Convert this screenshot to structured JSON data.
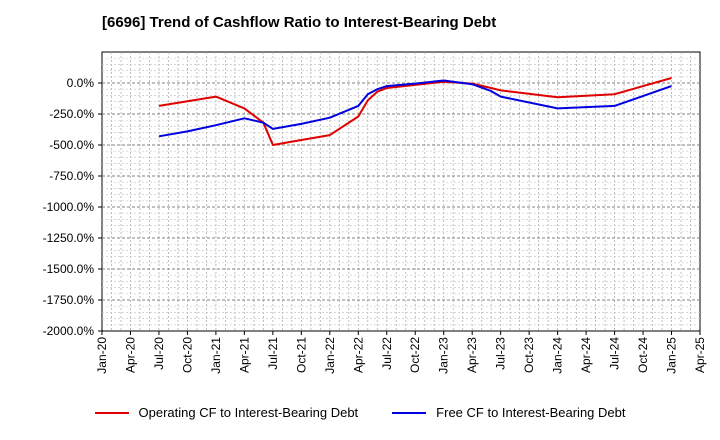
{
  "chart_data": {
    "type": "line",
    "title": "[6696]  Trend of Cashflow Ratio to Interest-Bearing Debt",
    "xlabel": "",
    "ylabel": "",
    "x_ticks": [
      "Jan-20",
      "Apr-20",
      "Jul-20",
      "Oct-20",
      "Jan-21",
      "Apr-21",
      "Jul-21",
      "Oct-21",
      "Jan-22",
      "Apr-22",
      "Jul-22",
      "Oct-22",
      "Jan-23",
      "Apr-23",
      "Jul-23",
      "Oct-23",
      "Jan-24",
      "Apr-24",
      "Jul-24",
      "Oct-24",
      "Jan-25",
      "Apr-25"
    ],
    "y_ticks": [
      "0.0%",
      "-250.0%",
      "-500.0%",
      "-750.0%",
      "-1000.0%",
      "-1250.0%",
      "-1500.0%",
      "-1750.0%",
      "-2000.0%"
    ],
    "ylim": [
      -2000,
      250
    ],
    "grid": true,
    "legend_position": "bottom",
    "series": [
      {
        "name": "Operating CF to Interest-Bearing Debt",
        "color": "#e00000",
        "x": [
          "Jul-20",
          "Jan-21",
          "Apr-21",
          "Jun-21",
          "Jul-21",
          "Oct-21",
          "Jan-22",
          "Apr-22",
          "May-22",
          "Jun-22",
          "Jul-22",
          "Oct-22",
          "Jan-23",
          "Apr-23",
          "Jun-23",
          "Jul-23",
          "Jan-24",
          "Jul-24",
          "Jan-25"
        ],
        "values": [
          -185,
          -110,
          -205,
          -320,
          -500,
          -460,
          -420,
          -270,
          -140,
          -70,
          -40,
          -15,
          10,
          -5,
          -40,
          -60,
          -115,
          -90,
          40
        ]
      },
      {
        "name": "Free CF to Interest-Bearing Debt",
        "color": "#0000e0",
        "x": [
          "Jul-20",
          "Oct-20",
          "Jan-21",
          "Apr-21",
          "Jun-21",
          "Jul-21",
          "Oct-21",
          "Jan-22",
          "Apr-22",
          "May-22",
          "Jun-22",
          "Jul-22",
          "Oct-22",
          "Jan-23",
          "Apr-23",
          "Jun-23",
          "Jul-23",
          "Jan-24",
          "Jul-24",
          "Jan-25"
        ],
        "values": [
          -430,
          -390,
          -340,
          -285,
          -320,
          -370,
          -330,
          -280,
          -185,
          -90,
          -50,
          -25,
          -5,
          20,
          -10,
          -65,
          -110,
          -205,
          -185,
          -25
        ]
      }
    ]
  }
}
